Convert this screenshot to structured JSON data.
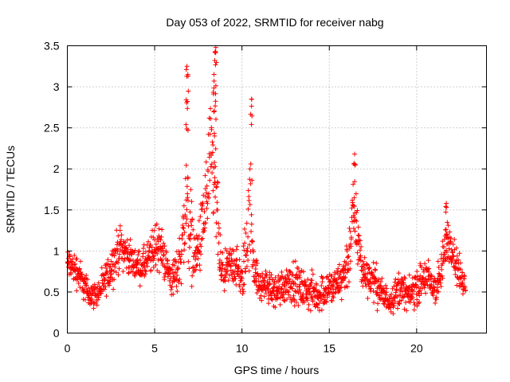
{
  "chart_data": {
    "type": "scatter",
    "title": "Day 053 of 2022, SRMTID for receiver nabg",
    "xlabel": "GPS time / hours",
    "ylabel": "SRMTID / TECUs",
    "xlim": [
      0,
      24
    ],
    "ylim": [
      0,
      3.5
    ],
    "grid": true,
    "marker": "+",
    "series_color": "#ff0000",
    "x_ticks": [
      0,
      5,
      10,
      15,
      20
    ],
    "x_tick_labels": [
      "0",
      "5",
      "10",
      "15",
      "20"
    ],
    "y_ticks": [
      0,
      0.5,
      1,
      1.5,
      2,
      2.5,
      3,
      3.5
    ],
    "y_tick_labels": [
      "0",
      "0.5",
      "1",
      "1.5",
      "2",
      "2.5",
      "3",
      "3.5"
    ],
    "series": [
      {
        "name": "SRMTID",
        "envelope_note": "Approximate data trace read from the scatter (hour, typical value, spread)",
        "x": [
          0.0,
          0.3,
          0.6,
          0.9,
          1.2,
          1.5,
          1.8,
          2.1,
          2.4,
          2.7,
          3.0,
          3.3,
          3.6,
          3.9,
          4.2,
          4.5,
          4.8,
          5.1,
          5.4,
          5.7,
          6.0,
          6.3,
          6.6,
          6.8,
          7.0,
          7.3,
          7.6,
          7.9,
          8.1,
          8.3,
          8.5,
          8.8,
          9.1,
          9.4,
          9.7,
          10.0,
          10.3,
          10.5,
          10.7,
          11.0,
          11.3,
          11.6,
          11.9,
          12.2,
          12.5,
          12.8,
          13.1,
          13.4,
          13.7,
          14.0,
          14.3,
          14.6,
          14.9,
          15.2,
          15.5,
          15.8,
          16.1,
          16.4,
          16.6,
          16.9,
          17.2,
          17.5,
          17.8,
          18.1,
          18.4,
          18.7,
          19.0,
          19.3,
          19.6,
          19.9,
          20.2,
          20.5,
          20.8,
          21.1,
          21.4,
          21.7,
          22.0,
          22.3,
          22.6,
          22.8
        ],
        "y": [
          0.85,
          0.8,
          0.75,
          0.6,
          0.5,
          0.45,
          0.5,
          0.6,
          0.75,
          0.9,
          1.05,
          1.0,
          0.9,
          0.85,
          0.8,
          0.85,
          0.95,
          1.1,
          1.0,
          0.8,
          0.65,
          0.75,
          1.1,
          1.6,
          1.3,
          0.9,
          1.1,
          1.5,
          1.9,
          2.0,
          1.7,
          0.7,
          0.75,
          0.85,
          0.8,
          0.6,
          1.2,
          1.5,
          0.8,
          0.55,
          0.6,
          0.55,
          0.5,
          0.55,
          0.6,
          0.65,
          0.6,
          0.55,
          0.5,
          0.5,
          0.45,
          0.5,
          0.55,
          0.55,
          0.6,
          0.7,
          0.9,
          1.5,
          1.2,
          0.75,
          0.7,
          0.65,
          0.55,
          0.45,
          0.4,
          0.45,
          0.55,
          0.5,
          0.45,
          0.55,
          0.6,
          0.7,
          0.6,
          0.55,
          0.7,
          1.15,
          1.1,
          0.8,
          0.65,
          0.6
        ],
        "spread": [
          0.25,
          0.25,
          0.3,
          0.25,
          0.2,
          0.2,
          0.2,
          0.25,
          0.3,
          0.35,
          0.35,
          0.3,
          0.25,
          0.25,
          0.25,
          0.3,
          0.35,
          0.45,
          0.35,
          0.3,
          0.3,
          0.35,
          0.6,
          1.0,
          0.8,
          0.4,
          0.5,
          0.8,
          1.0,
          1.0,
          0.9,
          0.35,
          0.3,
          0.35,
          0.35,
          0.3,
          0.8,
          0.9,
          0.3,
          0.25,
          0.25,
          0.25,
          0.3,
          0.3,
          0.3,
          0.35,
          0.3,
          0.3,
          0.3,
          0.3,
          0.25,
          0.3,
          0.3,
          0.3,
          0.3,
          0.35,
          0.5,
          0.65,
          0.5,
          0.35,
          0.3,
          0.3,
          0.3,
          0.25,
          0.2,
          0.25,
          0.3,
          0.25,
          0.25,
          0.3,
          0.3,
          0.35,
          0.3,
          0.3,
          0.35,
          0.35,
          0.35,
          0.3,
          0.25,
          0.25
        ]
      }
    ],
    "peaks": [
      {
        "x": 6.85,
        "y": 3.25
      },
      {
        "x": 6.9,
        "y": 3.15
      },
      {
        "x": 8.5,
        "y": 3.48
      },
      {
        "x": 8.45,
        "y": 3.42
      },
      {
        "x": 8.4,
        "y": 3.07
      },
      {
        "x": 10.55,
        "y": 2.85
      },
      {
        "x": 16.45,
        "y": 2.18
      },
      {
        "x": 21.7,
        "y": 1.58
      }
    ]
  }
}
